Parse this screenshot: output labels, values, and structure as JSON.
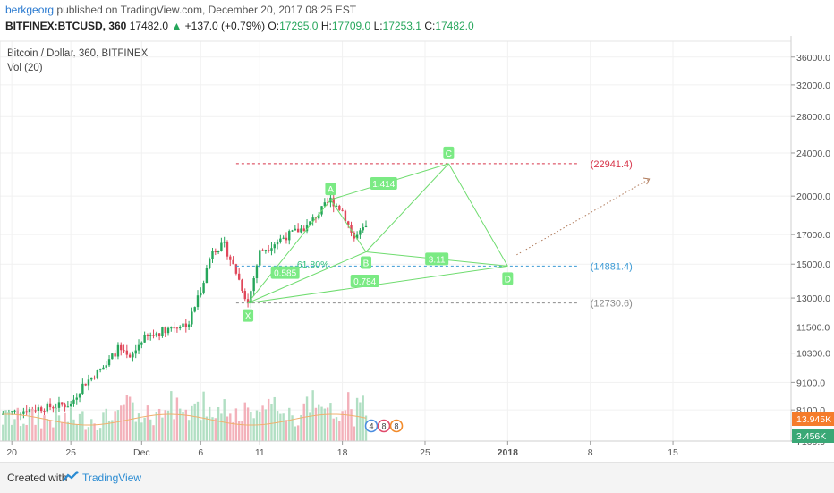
{
  "header": {
    "author": "berkgeorg",
    "published": "published on TradingView.com, December 20, 2017 08:25 EST",
    "symbol": "BITFINEX:BTCUSD, 360",
    "last": "17482.0",
    "change_arrow": "▲",
    "change": "+137.0 (+0.79%)",
    "o_label": "O:",
    "o": "17295.0",
    "h_label": "H:",
    "h": "17709.0",
    "l_label": "L:",
    "l": "17253.1",
    "c_label": "C:",
    "c": "17482.0"
  },
  "pane": {
    "title": "Bitcoin / Dollar, 360, BITFINEX",
    "volume_label": "Vol (20)"
  },
  "footer": {
    "created_with": "Created with",
    "brand": "TradingView"
  },
  "colors": {
    "up": "#26a65b",
    "down": "#e0475a",
    "pattern_line": "#6fdc6f",
    "pattern_label_bg": "#7bea84",
    "level_red": "#d7354a",
    "level_blue": "#3d9bd5",
    "level_gray": "#8c8c8c",
    "target_arrow": "#b07a5a",
    "volume_badge": "#f57c2b",
    "volume_badge2": "#3aa876",
    "volume_ma": "#f0b06e"
  },
  "chart_data": {
    "type": "candlestick",
    "title": "Bitcoin / Dollar, 360, BITFINEX",
    "scale": "log",
    "ylim": [
      7100,
      38500
    ],
    "y_ticks": [
      "36000.0",
      "32000.0",
      "28000.0",
      "24000.0",
      "20000.0",
      "17000.0",
      "15000.0",
      "13000.0",
      "11500.0",
      "10300.0",
      "9100.0",
      "8100.0",
      "7100.0"
    ],
    "x_ticks": [
      "20",
      "25",
      "Dec",
      "6",
      "11",
      "18",
      "25",
      "2018",
      "8",
      "15"
    ],
    "x_tick_dates": [
      "2017-11-20",
      "2017-11-25",
      "2017-12-01",
      "2017-12-06",
      "2017-12-11",
      "2017-12-18",
      "2017-12-25",
      "2018-01-01",
      "2018-01-08",
      "2018-01-15"
    ],
    "x_range": [
      "2017-11-19",
      "2018-01-25"
    ],
    "price_path": [
      {
        "date": "2017-11-19",
        "price": 7950
      },
      {
        "date": "2017-11-22",
        "price": 8150
      },
      {
        "date": "2017-11-25",
        "price": 8300
      },
      {
        "date": "2017-11-26",
        "price": 9000
      },
      {
        "date": "2017-11-28",
        "price": 9800
      },
      {
        "date": "2017-11-29",
        "price": 10500
      },
      {
        "date": "2017-11-30",
        "price": 10000
      },
      {
        "date": "2017-12-01",
        "price": 10900
      },
      {
        "date": "2017-12-03",
        "price": 11400
      },
      {
        "date": "2017-12-05",
        "price": 11700
      },
      {
        "date": "2017-12-06",
        "price": 13500
      },
      {
        "date": "2017-12-07",
        "price": 16000
      },
      {
        "date": "2017-12-08",
        "price": 16200
      },
      {
        "date": "2017-12-09",
        "price": 14500
      },
      {
        "date": "2017-12-10",
        "price": 12700
      },
      {
        "date": "2017-12-11",
        "price": 15800
      },
      {
        "date": "2017-12-13",
        "price": 16800
      },
      {
        "date": "2017-12-15",
        "price": 17600
      },
      {
        "date": "2017-12-17",
        "price": 19700
      },
      {
        "date": "2017-12-18",
        "price": 18800
      },
      {
        "date": "2017-12-19",
        "price": 16700
      },
      {
        "date": "2017-12-20",
        "price": 17482
      }
    ],
    "levels": [
      {
        "label": "(22941.4)",
        "value": 22941.4,
        "color": "#d7354a"
      },
      {
        "label": "(14881.4)",
        "value": 14881.4,
        "color": "#3d9bd5"
      },
      {
        "label": "(12730.6)",
        "value": 12730.6,
        "color": "#8c8c8c"
      }
    ],
    "pattern_points": [
      {
        "name": "X",
        "date": "2017-12-10",
        "value": 12730.6
      },
      {
        "name": "A",
        "date": "2017-12-17",
        "value": 19700
      },
      {
        "name": "B",
        "date": "2017-12-20",
        "value": 15800
      },
      {
        "name": "C",
        "date": "2017-12-27",
        "value": 22941.4
      },
      {
        "name": "D",
        "date": "2018-01-01",
        "value": 14881.4
      }
    ],
    "ratio_labels": [
      "1.414",
      "61.80%",
      "3.11",
      "0.585",
      "0.784"
    ],
    "volume_badges": [
      "13.945K",
      "3.456K"
    ],
    "volume_icon_digits": [
      "4",
      "8",
      "8"
    ]
  }
}
